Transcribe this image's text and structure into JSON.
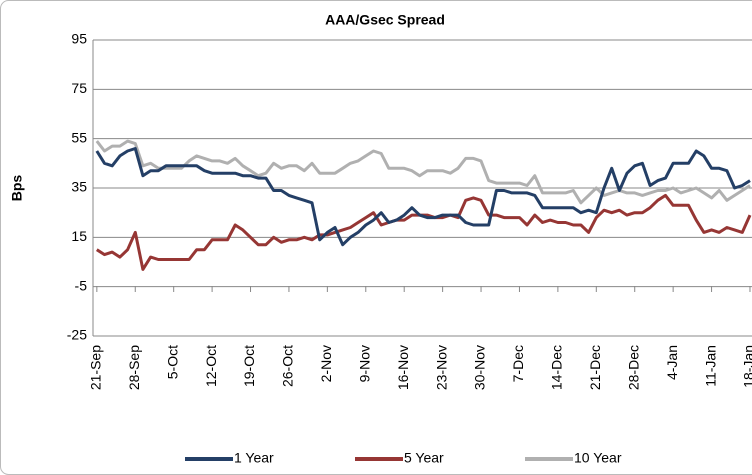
{
  "chart_data": {
    "type": "line",
    "title": "AAA/Gsec Spread",
    "y_label": "Bps",
    "categories": [
      "21-Sep",
      null,
      null,
      null,
      null,
      "28-Sep",
      null,
      null,
      null,
      null,
      "5-Oct",
      null,
      null,
      null,
      null,
      "12-Oct",
      null,
      null,
      null,
      null,
      "19-Oct",
      null,
      null,
      null,
      null,
      "26-Oct",
      null,
      null,
      null,
      null,
      "2-Nov",
      null,
      null,
      null,
      null,
      "9-Nov",
      null,
      null,
      null,
      null,
      "16-Nov",
      null,
      null,
      null,
      null,
      "23-Nov",
      null,
      null,
      null,
      null,
      "30-Nov",
      null,
      null,
      null,
      null,
      "7-Dec",
      null,
      null,
      null,
      null,
      "14-Dec",
      null,
      null,
      null,
      null,
      "21-Dec",
      null,
      null,
      null,
      null,
      "28-Dec",
      null,
      null,
      null,
      null,
      "4-Jan",
      null,
      null,
      null,
      null,
      "11-Jan",
      null,
      null,
      null,
      null,
      "18-Jan"
    ],
    "series": [
      {
        "name": "1 Year",
        "color": "#243f66",
        "values": [
          50,
          45,
          44,
          48,
          50,
          51,
          40,
          42,
          42,
          44,
          44,
          44,
          44,
          44,
          42,
          41,
          41,
          41,
          41,
          40,
          40,
          39,
          39,
          34,
          34,
          32,
          31,
          30,
          29,
          14,
          17,
          19,
          12,
          15,
          17,
          20,
          22,
          25,
          21,
          22,
          24,
          27,
          24,
          23,
          23,
          24,
          24,
          24,
          21,
          20,
          20,
          20,
          34,
          34,
          33,
          33,
          33,
          32,
          27,
          27,
          27,
          27,
          27,
          25,
          26,
          25,
          35,
          43,
          34,
          41,
          44,
          45,
          36,
          38,
          39,
          45,
          45,
          45,
          50,
          48,
          43,
          43,
          42,
          35,
          36,
          38
        ]
      },
      {
        "name": "5 Year",
        "color": "#963634",
        "values": [
          10,
          8,
          9,
          7,
          10,
          17,
          2,
          7,
          6,
          6,
          6,
          6,
          6,
          10,
          10,
          14,
          14,
          14,
          20,
          18,
          15,
          12,
          12,
          15,
          13,
          14,
          14,
          15,
          14,
          16,
          16,
          17,
          18,
          19,
          21,
          23,
          25,
          20,
          21,
          22,
          22,
          24,
          24,
          24,
          23,
          23,
          24,
          23,
          30,
          31,
          30,
          24,
          24,
          23,
          23,
          23,
          20,
          24,
          21,
          22,
          21,
          21,
          20,
          20,
          17,
          23,
          26,
          25,
          26,
          24,
          25,
          25,
          27,
          30,
          32,
          28,
          28,
          28,
          22,
          17,
          18,
          17,
          19,
          18,
          17,
          24
        ]
      },
      {
        "name": "10 Year",
        "color": "#b0b0b0",
        "values": [
          54,
          50,
          52,
          52,
          54,
          53,
          44,
          45,
          43,
          43,
          43,
          43,
          46,
          48,
          47,
          46,
          46,
          45,
          47,
          44,
          42,
          40,
          41,
          45,
          43,
          44,
          44,
          42,
          45,
          41,
          41,
          41,
          43,
          45,
          46,
          48,
          50,
          49,
          43,
          43,
          43,
          42,
          40,
          42,
          42,
          42,
          41,
          43,
          47,
          47,
          46,
          38,
          37,
          37,
          37,
          37,
          36,
          40,
          33,
          33,
          33,
          33,
          34,
          29,
          32,
          35,
          32,
          33,
          34,
          33,
          33,
          32,
          33,
          34,
          34,
          35,
          33,
          34,
          35,
          33,
          31,
          34,
          30,
          32,
          34,
          36
        ]
      }
    ],
    "ylim": [
      -25,
      95
    ],
    "yticks": [
      -25,
      -5,
      15,
      35,
      55,
      75,
      95
    ],
    "grid": true,
    "legend": "bottom"
  }
}
